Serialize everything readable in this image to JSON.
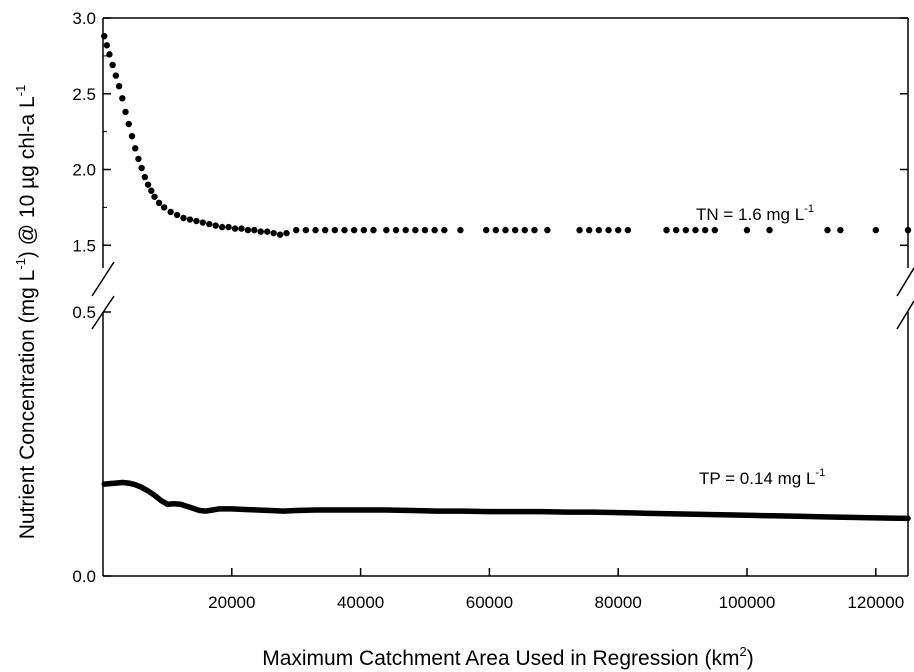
{
  "chart_data": {
    "type": "scatter",
    "xlabel": "Maximum Catchment Area Used in Regression (km",
    "xlabel_sup": "2",
    "xlabel_end": ")",
    "ylabel_parts": [
      "Nutrient Concentration (mg L",
      "-1",
      ") @ 10 µg chl-a L",
      "-1"
    ],
    "xlim": [
      0,
      125000
    ],
    "x_ticks": [
      20000,
      40000,
      60000,
      80000,
      100000,
      120000
    ],
    "x_tick_labels": [
      "20000",
      "40000",
      "60000",
      "80000",
      "100000",
      "120000"
    ],
    "upper_panel": {
      "ylim": [
        1.35,
        3.0
      ],
      "y_ticks": [
        1.5,
        2.0,
        2.5,
        3.0
      ],
      "y_tick_labels": [
        "1.5",
        "2.0",
        "2.5",
        "3.0"
      ]
    },
    "lower_panel": {
      "ylim": [
        0.0,
        0.5
      ],
      "y_ticks": [
        0.0,
        0.5
      ],
      "y_tick_labels": [
        "0.0",
        "0.5"
      ]
    },
    "series": [
      {
        "name": "TN",
        "panel": "upper",
        "style": "dots",
        "annotation": "TN = 1.6 mg L",
        "annotation_sup": "-1",
        "x": [
          200,
          600,
          1000,
          1500,
          2000,
          2500,
          3000,
          3500,
          4000,
          4500,
          5000,
          5500,
          6000,
          6500,
          7000,
          7500,
          8000,
          8700,
          9500,
          10500,
          11500,
          12500,
          13500,
          14500,
          15500,
          16500,
          17500,
          18500,
          19500,
          20500,
          21500,
          22500,
          23500,
          24500,
          25500,
          26500,
          27500,
          28500,
          30000,
          31500,
          33000,
          34500,
          36000,
          37500,
          39000,
          40500,
          42000,
          44000,
          45500,
          47000,
          48500,
          50000,
          51500,
          53000,
          55500,
          59500,
          61000,
          62500,
          64000,
          65500,
          67000,
          69000,
          74000,
          75500,
          77000,
          78500,
          80000,
          81500,
          87500,
          89000,
          90500,
          92000,
          93500,
          95000,
          100000,
          103500,
          112500,
          114500,
          120000,
          125000
        ],
        "y": [
          2.88,
          2.82,
          2.76,
          2.69,
          2.62,
          2.55,
          2.47,
          2.38,
          2.3,
          2.22,
          2.14,
          2.07,
          2.01,
          1.95,
          1.9,
          1.86,
          1.82,
          1.78,
          1.75,
          1.72,
          1.7,
          1.68,
          1.67,
          1.66,
          1.65,
          1.64,
          1.63,
          1.62,
          1.62,
          1.61,
          1.61,
          1.6,
          1.6,
          1.59,
          1.59,
          1.58,
          1.57,
          1.58,
          1.6,
          1.6,
          1.6,
          1.6,
          1.6,
          1.6,
          1.6,
          1.6,
          1.6,
          1.6,
          1.6,
          1.6,
          1.6,
          1.6,
          1.6,
          1.6,
          1.6,
          1.6,
          1.6,
          1.6,
          1.6,
          1.6,
          1.6,
          1.6,
          1.6,
          1.6,
          1.6,
          1.6,
          1.6,
          1.6,
          1.6,
          1.6,
          1.6,
          1.6,
          1.6,
          1.6,
          1.6,
          1.6,
          1.6,
          1.6,
          1.6,
          1.6
        ]
      },
      {
        "name": "TP",
        "panel": "lower",
        "style": "thick-line",
        "annotation": "TP = 0.14 mg L",
        "annotation_sup": "-1",
        "x": [
          200,
          1000,
          2000,
          3000,
          4000,
          5000,
          6000,
          7000,
          8000,
          9000,
          10000,
          11000,
          12000,
          13000,
          14000,
          15000,
          16000,
          17000,
          18000,
          20000,
          22000,
          24000,
          26000,
          28000,
          30000,
          33000,
          36000,
          40000,
          44000,
          48000,
          52000,
          56000,
          60000,
          64000,
          68000,
          72000,
          76000,
          80000,
          84000,
          88000,
          92000,
          96000,
          100000,
          104000,
          108000,
          112000,
          116000,
          120000,
          125000
        ],
        "y": [
          0.174,
          0.175,
          0.176,
          0.177,
          0.176,
          0.173,
          0.168,
          0.161,
          0.153,
          0.143,
          0.136,
          0.137,
          0.136,
          0.132,
          0.128,
          0.124,
          0.123,
          0.125,
          0.127,
          0.127,
          0.126,
          0.125,
          0.124,
          0.123,
          0.124,
          0.125,
          0.125,
          0.125,
          0.125,
          0.124,
          0.123,
          0.123,
          0.122,
          0.122,
          0.122,
          0.121,
          0.121,
          0.12,
          0.119,
          0.118,
          0.117,
          0.116,
          0.115,
          0.114,
          0.113,
          0.112,
          0.111,
          0.11,
          0.109
        ]
      }
    ]
  }
}
